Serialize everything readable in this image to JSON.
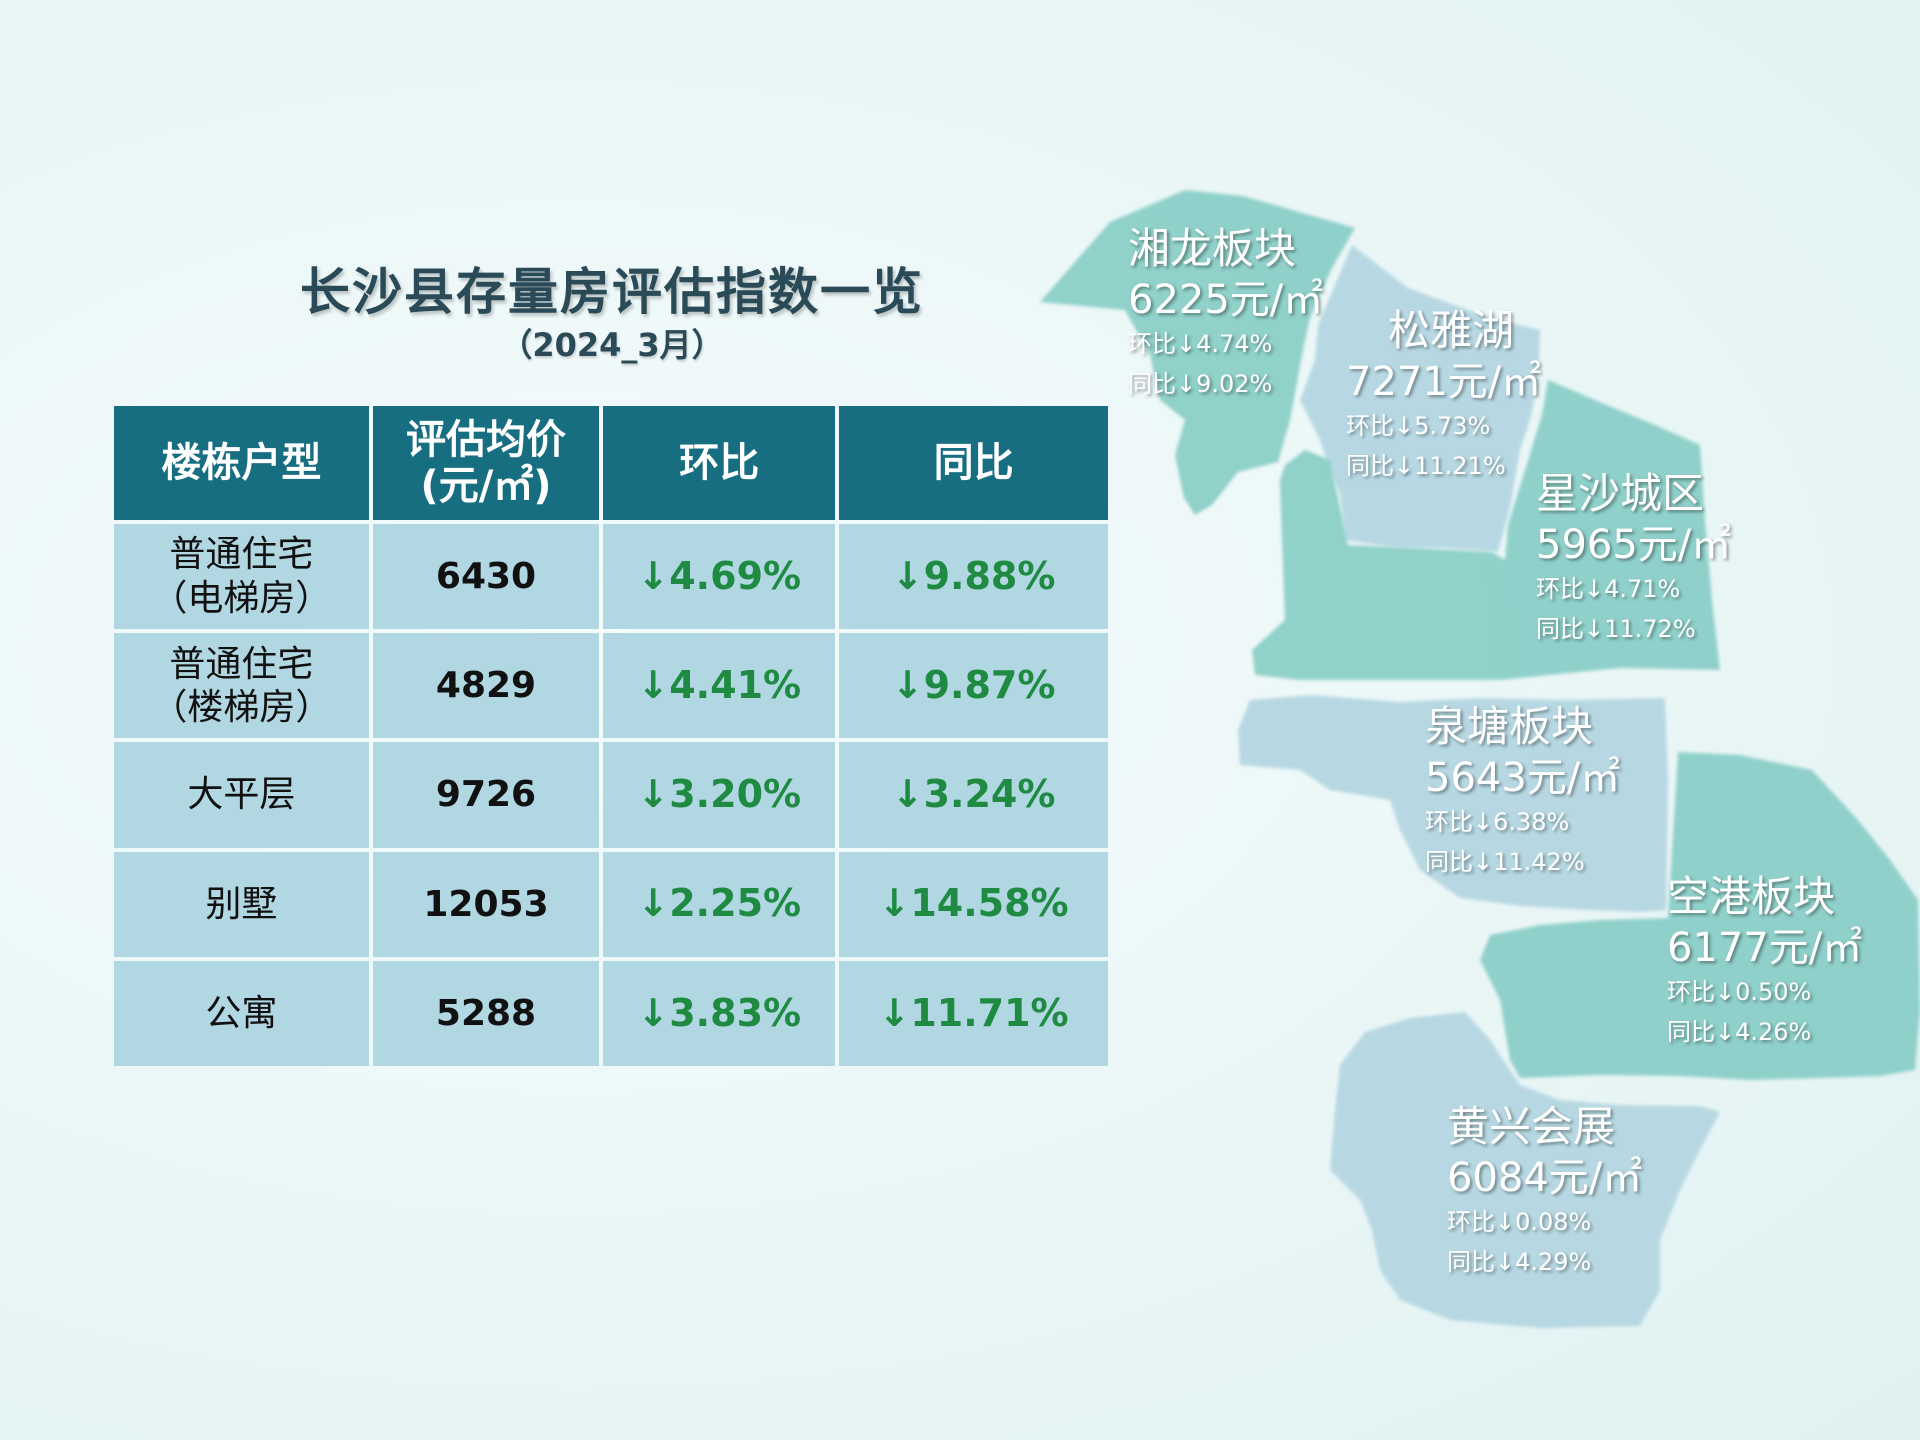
{
  "title": "长沙县存量房评估指数一览",
  "subtitle": "（2024_3月）",
  "table": {
    "headers": [
      "楼栋户型",
      "评估均价",
      "(元/㎡)",
      "环比",
      "同比"
    ],
    "rows": [
      {
        "type_line1": "普通住宅",
        "type_line2": "（电梯房）",
        "price": "6430",
        "mom": "↓4.69%",
        "yoy": "↓9.88%"
      },
      {
        "type_line1": "普通住宅",
        "type_line2": "（楼梯房）",
        "price": "4829",
        "mom": "↓4.41%",
        "yoy": "↓9.87%"
      },
      {
        "type_line1": "大平层",
        "type_line2": "",
        "price": "9726",
        "mom": "↓3.20%",
        "yoy": "↓3.24%"
      },
      {
        "type_line1": "别墅",
        "type_line2": "",
        "price": "12053",
        "mom": "↓2.25%",
        "yoy": "↓14.58%"
      },
      {
        "type_line1": "公寓",
        "type_line2": "",
        "price": "5288",
        "mom": "↓3.83%",
        "yoy": "↓11.71%"
      }
    ]
  },
  "map": {
    "colors": {
      "teal": "#8ccfc8",
      "blue": "#b5d7e2"
    },
    "regions": [
      {
        "name": "湘龙板块",
        "price": "6225元/㎡",
        "mom": "环比↓4.74%",
        "yoy": "同比↓9.02%",
        "color": "teal"
      },
      {
        "name": "松雅湖",
        "price": "7271元/㎡",
        "mom": "环比↓5.73%",
        "yoy": "同比↓11.21%",
        "color": "blue"
      },
      {
        "name": "星沙城区",
        "price": "5965元/㎡",
        "mom": "环比↓4.71%",
        "yoy": "同比↓11.72%",
        "color": "teal"
      },
      {
        "name": "泉塘板块",
        "price": "5643元/㎡",
        "mom": "环比↓6.38%",
        "yoy": "同比↓11.42%",
        "color": "blue"
      },
      {
        "name": "空港板块",
        "price": "6177元/㎡",
        "mom": "环比↓0.50%",
        "yoy": "同比↓4.26%",
        "color": "teal"
      },
      {
        "name": "黄兴会展",
        "price": "6084元/㎡",
        "mom": "环比↓0.08%",
        "yoy": "同比↓4.29%",
        "color": "blue"
      }
    ]
  }
}
